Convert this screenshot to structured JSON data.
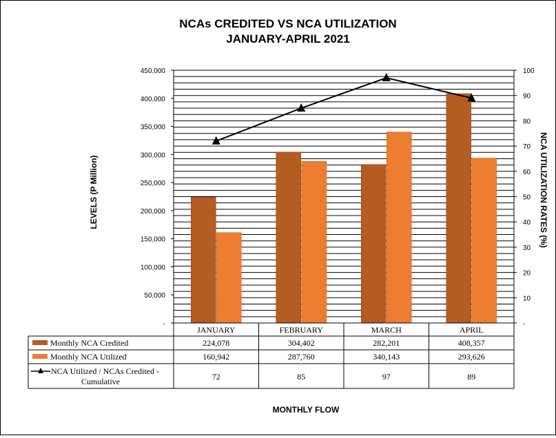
{
  "chart_data": {
    "type": "bar",
    "title": "NCAs CREDITED VS NCA UTILIZATION",
    "subtitle": "JANUARY-APRIL 2021",
    "xlabel": "MONTHLY  FLOW",
    "ylabel": "LEVELS (P Million)",
    "y2label": "NCA UTILIZATION RATES (%)",
    "ylim": [
      0,
      450000
    ],
    "y2lim": [
      0,
      100
    ],
    "yticks": [
      0,
      50000,
      100000,
      150000,
      200000,
      250000,
      300000,
      350000,
      400000,
      450000
    ],
    "y2ticks": [
      0,
      10,
      20,
      30,
      40,
      50,
      60,
      70,
      80,
      90,
      100
    ],
    "zero_label": "-",
    "categories": [
      "JANUARY",
      "FEBRUARY",
      "MARCH",
      "APRIL"
    ],
    "series": [
      {
        "name": "Monthly NCA Credited",
        "type": "bar",
        "color": "#b55c22",
        "values": [
          224078,
          304402,
          282201,
          408357
        ],
        "labels": [
          "224,078",
          "304,402",
          "282,201",
          "408,357"
        ]
      },
      {
        "name": "Monthly NCA Utilized",
        "type": "bar",
        "color": "#ed7d31",
        "values": [
          160942,
          287760,
          340143,
          293626
        ],
        "labels": [
          "160,942",
          "287,760",
          "340,143",
          "293,626"
        ]
      },
      {
        "name_line1": "NCA Utilized / NCAs Credited -",
        "name_line2": "Cumulative",
        "type": "line",
        "axis": "right",
        "marker": "triangle",
        "color": "#000000",
        "values": [
          72,
          85,
          97,
          89
        ],
        "labels": [
          "72",
          "85",
          "97",
          "89"
        ]
      }
    ],
    "grid": true,
    "legend": "data-table"
  }
}
